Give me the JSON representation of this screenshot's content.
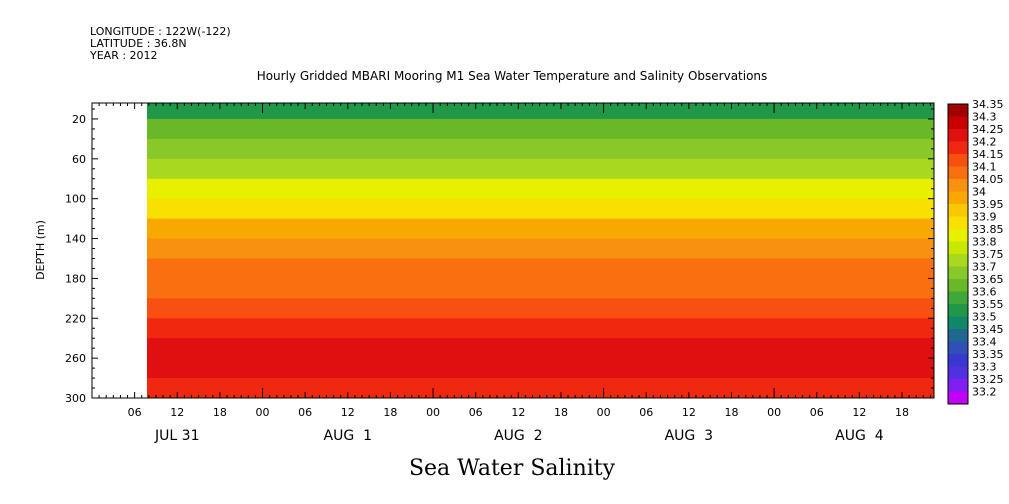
{
  "header": {
    "longitude": "LONGITUDE : 122W(-122)",
    "latitude": "LATITUDE : 36.8N",
    "year": "YEAR : 2012"
  },
  "chart_data": {
    "type": "heatmap",
    "title": "Hourly Gridded MBARI Mooring M1 Sea Water Temperature and Salinity Observations",
    "footer_title": "Sea Water Salinity",
    "ylabel": "DEPTH (m)",
    "ylim": [
      300,
      4
    ],
    "y_ticks": [
      20,
      60,
      100,
      140,
      180,
      220,
      260,
      300
    ],
    "x_hour_ticks": [
      {
        "hour": 6,
        "label": "06"
      },
      {
        "hour": 12,
        "label": "12"
      },
      {
        "hour": 18,
        "label": "18"
      },
      {
        "hour": 24,
        "label": "00"
      },
      {
        "hour": 30,
        "label": "06"
      },
      {
        "hour": 36,
        "label": "12"
      },
      {
        "hour": 42,
        "label": "18"
      },
      {
        "hour": 48,
        "label": "00"
      },
      {
        "hour": 54,
        "label": "06"
      },
      {
        "hour": 60,
        "label": "12"
      },
      {
        "hour": 66,
        "label": "18"
      },
      {
        "hour": 72,
        "label": "00"
      },
      {
        "hour": 78,
        "label": "06"
      },
      {
        "hour": 84,
        "label": "12"
      },
      {
        "hour": 90,
        "label": "18"
      },
      {
        "hour": 96,
        "label": "00"
      },
      {
        "hour": 102,
        "label": "06"
      },
      {
        "hour": 108,
        "label": "12"
      },
      {
        "hour": 114,
        "label": "18"
      }
    ],
    "x_day_labels": [
      {
        "hour": 12,
        "label": "JUL 31"
      },
      {
        "hour": 36,
        "label": "AUG  1"
      },
      {
        "hour": 60,
        "label": "AUG  2"
      },
      {
        "hour": 84,
        "label": "AUG  3"
      },
      {
        "hour": 108,
        "label": "AUG  4"
      }
    ],
    "x_range_hours": [
      0,
      118.5
    ],
    "data_start_hour": 7.5,
    "colorbar": {
      "levels": [
        "34.35",
        "34.3",
        "34.25",
        "34.2",
        "34.15",
        "34.1",
        "34.05",
        "34",
        "33.95",
        "33.9",
        "33.85",
        "33.8",
        "33.75",
        "33.7",
        "33.65",
        "33.6",
        "33.55",
        "33.5",
        "33.45",
        "33.4",
        "33.35",
        "33.3",
        "33.25",
        "33.2"
      ],
      "colors": [
        "#a00000",
        "#c80000",
        "#e01010",
        "#f02810",
        "#f85010",
        "#f87010",
        "#f89010",
        "#f8a800",
        "#f8c800",
        "#f8e000",
        "#e8f000",
        "#c8e800",
        "#a8d820",
        "#88c828",
        "#68b828",
        "#40a838",
        "#209848",
        "#108868",
        "#206890",
        "#3050b8",
        "#3838d0",
        "#5030e0",
        "#8020f0",
        "#c000f8"
      ]
    },
    "depth_profile": [
      {
        "depth": 4,
        "salinity": 33.55
      },
      {
        "depth": 20,
        "salinity": 33.62
      },
      {
        "depth": 40,
        "salinity": 33.68
      },
      {
        "depth": 60,
        "salinity": 33.74
      },
      {
        "depth": 80,
        "salinity": 33.82
      },
      {
        "depth": 100,
        "salinity": 33.9
      },
      {
        "depth": 120,
        "salinity": 33.97
      },
      {
        "depth": 140,
        "salinity": 34.08
      },
      {
        "depth": 160,
        "salinity": 34.1
      },
      {
        "depth": 180,
        "salinity": 34.12
      },
      {
        "depth": 200,
        "salinity": 34.15
      },
      {
        "depth": 220,
        "salinity": 34.2
      },
      {
        "depth": 240,
        "salinity": 34.25
      },
      {
        "depth": 260,
        "salinity": 34.28
      },
      {
        "depth": 280,
        "salinity": 34.23
      },
      {
        "depth": 300,
        "salinity": 34.22
      }
    ]
  }
}
